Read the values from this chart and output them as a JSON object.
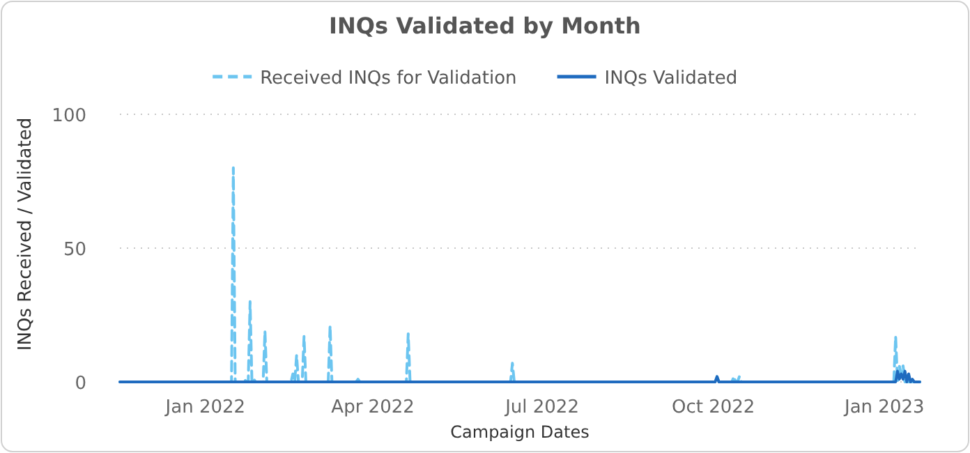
{
  "chart_data": {
    "type": "line",
    "title": "INQs Validated by Month",
    "xlabel": "Campaign Dates",
    "ylabel": "INQs Received / Validated",
    "xlim": [
      "2021-11-16",
      "2023-01-20"
    ],
    "xticks": [
      {
        "value": "2022-01-01",
        "label": "Jan 2022"
      },
      {
        "value": "2022-04-01",
        "label": "Apr 2022"
      },
      {
        "value": "2022-07-01",
        "label": "Jul 2022"
      },
      {
        "value": "2022-10-01",
        "label": "Oct 2022"
      },
      {
        "value": "2023-01-01",
        "label": "Jan 2023"
      }
    ],
    "ylim": [
      0,
      100
    ],
    "yticks": [
      0,
      50,
      100
    ],
    "grid": "y",
    "legend": "top",
    "marker": "none",
    "series": [
      {
        "name": "Received INQs for Validation",
        "color": "#6cc5f0",
        "line_style": "dashed",
        "x": [
          "2021-11-16",
          "2022-01-15",
          "2022-01-16",
          "2022-01-17",
          "2022-01-21",
          "2022-01-22",
          "2022-01-23",
          "2022-01-24",
          "2022-01-25",
          "2022-01-26",
          "2022-01-27",
          "2022-01-28",
          "2022-02-01",
          "2022-02-02",
          "2022-02-03",
          "2022-02-16",
          "2022-02-17",
          "2022-02-18",
          "2022-02-19",
          "2022-02-20",
          "2022-02-22",
          "2022-02-23",
          "2022-02-24",
          "2022-03-08",
          "2022-03-09",
          "2022-03-10",
          "2022-03-23",
          "2022-03-24",
          "2022-03-25",
          "2022-04-19",
          "2022-04-20",
          "2022-04-21",
          "2022-06-14",
          "2022-06-15",
          "2022-06-16",
          "2022-10-02",
          "2022-10-03",
          "2022-10-04",
          "2022-10-11",
          "2022-10-12",
          "2022-10-13",
          "2022-10-14",
          "2022-10-15",
          "2022-10-16",
          "2023-01-06",
          "2023-01-07",
          "2023-01-08",
          "2023-01-09",
          "2023-01-10",
          "2023-01-11",
          "2023-01-12",
          "2023-01-20"
        ],
        "values": [
          0,
          0,
          80,
          0,
          0,
          1,
          0,
          0,
          30,
          0,
          1,
          0,
          0,
          19,
          0,
          0,
          3,
          0,
          10,
          0,
          0,
          17,
          0,
          0,
          21,
          0,
          0,
          1,
          0,
          0,
          18,
          0,
          0,
          7,
          0,
          0,
          2,
          0,
          0,
          2,
          0,
          0,
          2,
          0,
          0,
          17,
          0,
          6,
          3,
          6,
          0,
          0
        ]
      },
      {
        "name": "INQs Validated",
        "color": "#1f6bbf",
        "line_style": "solid",
        "x": [
          "2021-11-16",
          "2022-10-02",
          "2022-10-03",
          "2022-10-04",
          "2023-01-07",
          "2023-01-08",
          "2023-01-09",
          "2023-01-10",
          "2023-01-11",
          "2023-01-12",
          "2023-01-13",
          "2023-01-14",
          "2023-01-15",
          "2023-01-16",
          "2023-01-17",
          "2023-01-20"
        ],
        "values": [
          0,
          0,
          2,
          0,
          0,
          4,
          1,
          3,
          1,
          4,
          0,
          3,
          0,
          1,
          0,
          0
        ]
      }
    ]
  }
}
